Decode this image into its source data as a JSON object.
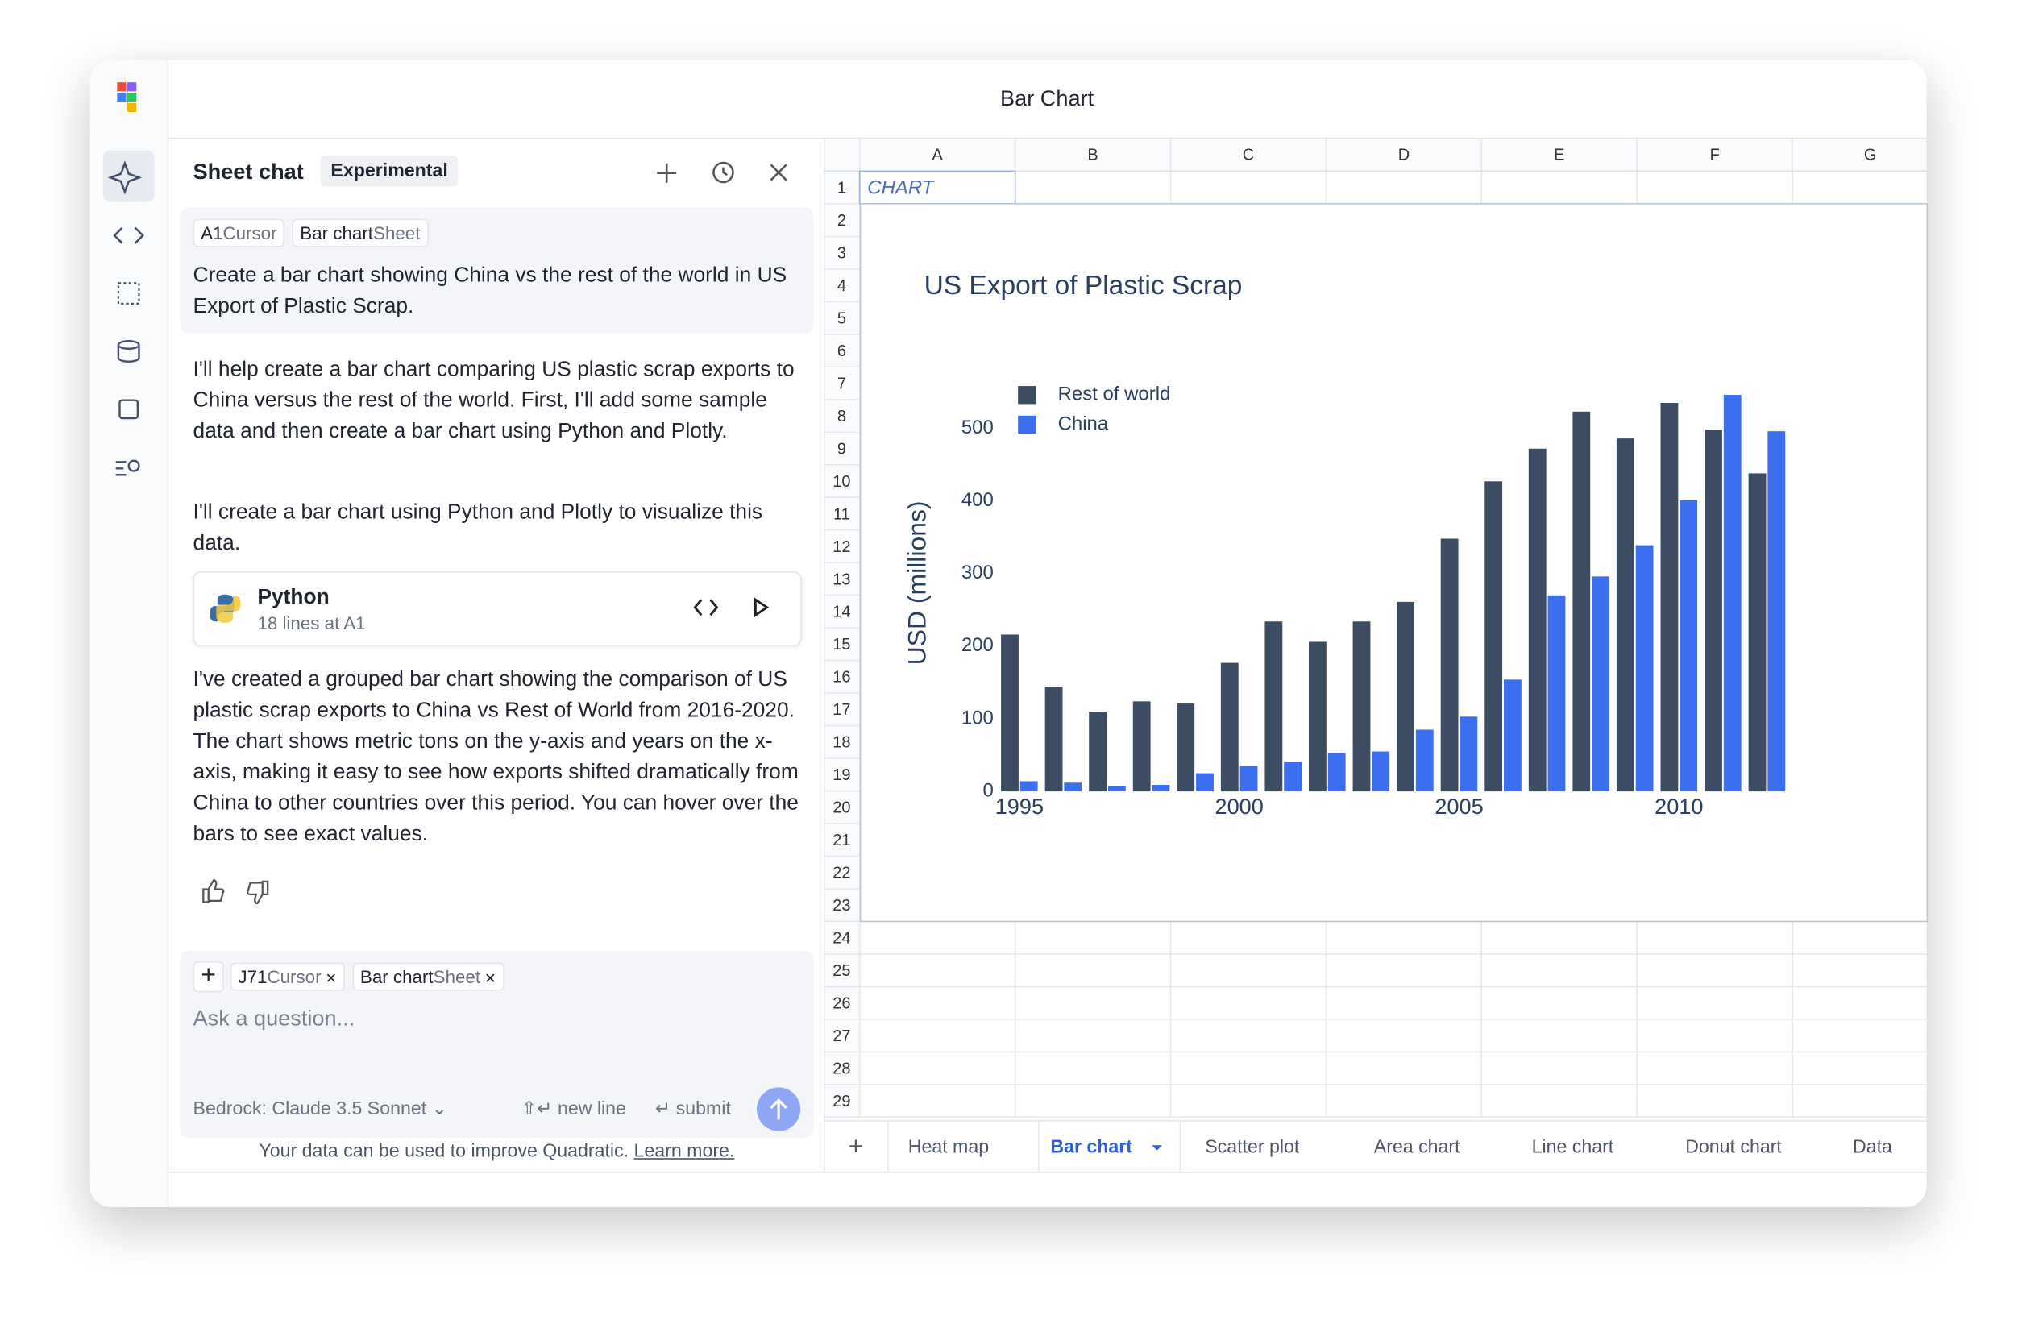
{
  "window_title": "Bar Chart",
  "chat": {
    "title": "Sheet chat",
    "badge": "Experimental",
    "context": [
      {
        "name": "A1",
        "kind": "Cursor"
      },
      {
        "name": "Bar chart",
        "kind": "Sheet"
      }
    ],
    "user_message": "Create a bar chart showing China vs the rest of the world in US Export of Plastic Scrap.",
    "reply_1": "I'll help create a bar chart comparing US plastic scrap exports to China versus the rest of the world. First, I'll add some sample data and then create a bar chart using Python and Plotly.",
    "reply_2": "I'll create a bar chart using Python and Plotly to visualize this data.",
    "code": {
      "language": "Python",
      "detail": "18 lines at A1"
    },
    "reply_3": "I've created a grouped bar chart showing the comparison of US plastic scrap exports to China vs Rest of World from 2016-2020. The chart shows metric tons on the y-axis and years on the x-axis, making it easy to see how exports shifted dramatically from China to other countries over this period. You can hover over the bars to see exact values.",
    "input_context": [
      {
        "name": "J71",
        "kind": "Cursor"
      },
      {
        "name": "Bar chart",
        "kind": "Sheet"
      }
    ],
    "placeholder": "Ask a question...",
    "model": "Bedrock: Claude 3.5 Sonnet",
    "hint_newline": "new line",
    "hint_submit": "submit",
    "footer": "Your data can be used to improve Quadratic.",
    "footer_link": "Learn more."
  },
  "sheet": {
    "columns": [
      "A",
      "B",
      "C",
      "D",
      "E",
      "F",
      "G"
    ],
    "rows": [
      1,
      2,
      3,
      4,
      5,
      6,
      7,
      8,
      9,
      10,
      11,
      12,
      13,
      14,
      15,
      16,
      17,
      18,
      19,
      20,
      21,
      22,
      23,
      24,
      25,
      26,
      27,
      28,
      29
    ],
    "cell_a1": "CHART",
    "tabs": [
      "Heat map",
      "Bar chart",
      "Scatter plot",
      "Area chart",
      "Line chart",
      "Donut chart",
      "Data"
    ],
    "active_tab": "Bar chart"
  },
  "chart_data": {
    "type": "bar",
    "title": "US Export of Plastic Scrap",
    "y_label": "USD (millions)",
    "x": [
      1995,
      1996,
      1997,
      1998,
      1999,
      2000,
      2001,
      2002,
      2003,
      2004,
      2005,
      2006,
      2007,
      2008,
      2009,
      2010,
      2011,
      2012
    ],
    "series": [
      {
        "name": "Rest of world",
        "color": "#3b4c63",
        "values": [
          216,
          144,
          110,
          124,
          121,
          177,
          234,
          206,
          234,
          261,
          348,
          427,
          472,
          523,
          486,
          535,
          498,
          438
        ]
      },
      {
        "name": "China",
        "color": "#3b6ff0",
        "values": [
          14,
          12,
          7,
          9,
          25,
          35,
          41,
          53,
          55,
          85,
          103,
          154,
          270,
          296,
          339,
          401,
          546,
          496
        ]
      }
    ],
    "xlim": [
      1994.5,
      2012.5
    ],
    "xticks": [
      1995,
      2000,
      2005,
      2010
    ],
    "ylim": [
      0,
      560
    ],
    "yticks": [
      0,
      100,
      200,
      300,
      400,
      500
    ],
    "grid": false,
    "legend": "top-left"
  }
}
